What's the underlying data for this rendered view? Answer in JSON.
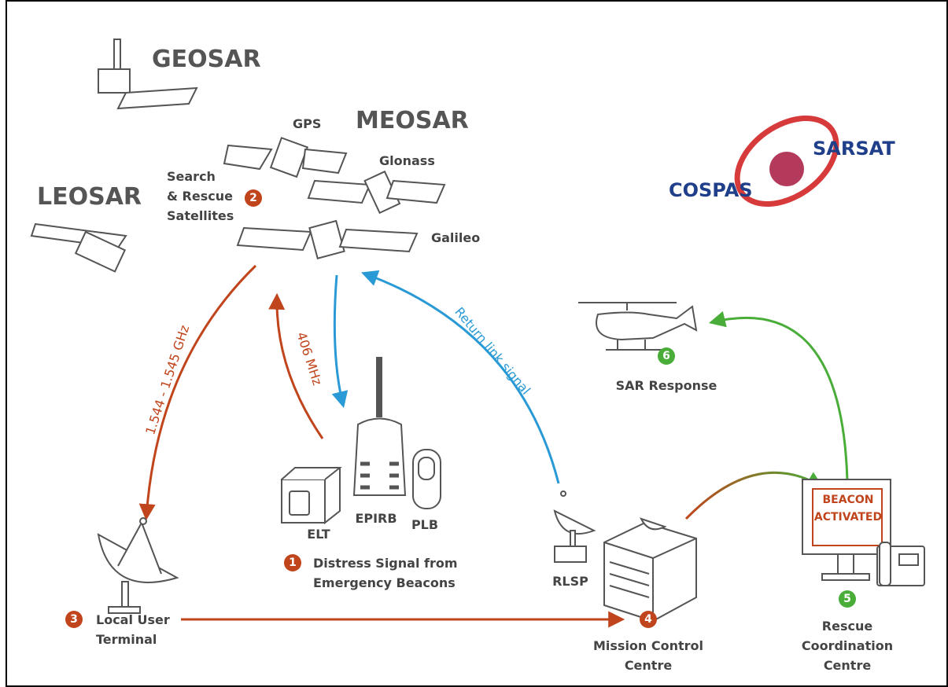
{
  "satellites": {
    "geosar": "GEOSAR",
    "meosar": "MEOSAR",
    "leosar": "LEOSAR",
    "gps": "GPS",
    "glonass": "Glonass",
    "galileo": "Galileo"
  },
  "steps": [
    {
      "number": "1",
      "lines": [
        "Distress Signal from",
        "Emergency Beacons"
      ]
    },
    {
      "number": "2",
      "lines": [
        "Search",
        "& Rescue",
        "Satellites"
      ]
    },
    {
      "number": "3",
      "lines": [
        "Local User",
        "Terminal"
      ]
    },
    {
      "number": "4",
      "lines": [
        "Mission Control",
        "Centre"
      ]
    },
    {
      "number": "5",
      "lines": [
        "Rescue",
        "Coordination",
        "Centre"
      ]
    },
    {
      "number": "6",
      "lines": [
        "SAR Response"
      ]
    }
  ],
  "beacons": [
    "ELT",
    "EPIRB",
    "PLB"
  ],
  "rlsp": "RLSP",
  "links": {
    "downlink": "1.544 - 1.545 GHz",
    "uplink": "406 MHz",
    "return": "Return link signal"
  },
  "screen": [
    "BEACON",
    "ACTIVATED"
  ],
  "logo": {
    "left": "COSPAS",
    "right": "SARSAT"
  }
}
